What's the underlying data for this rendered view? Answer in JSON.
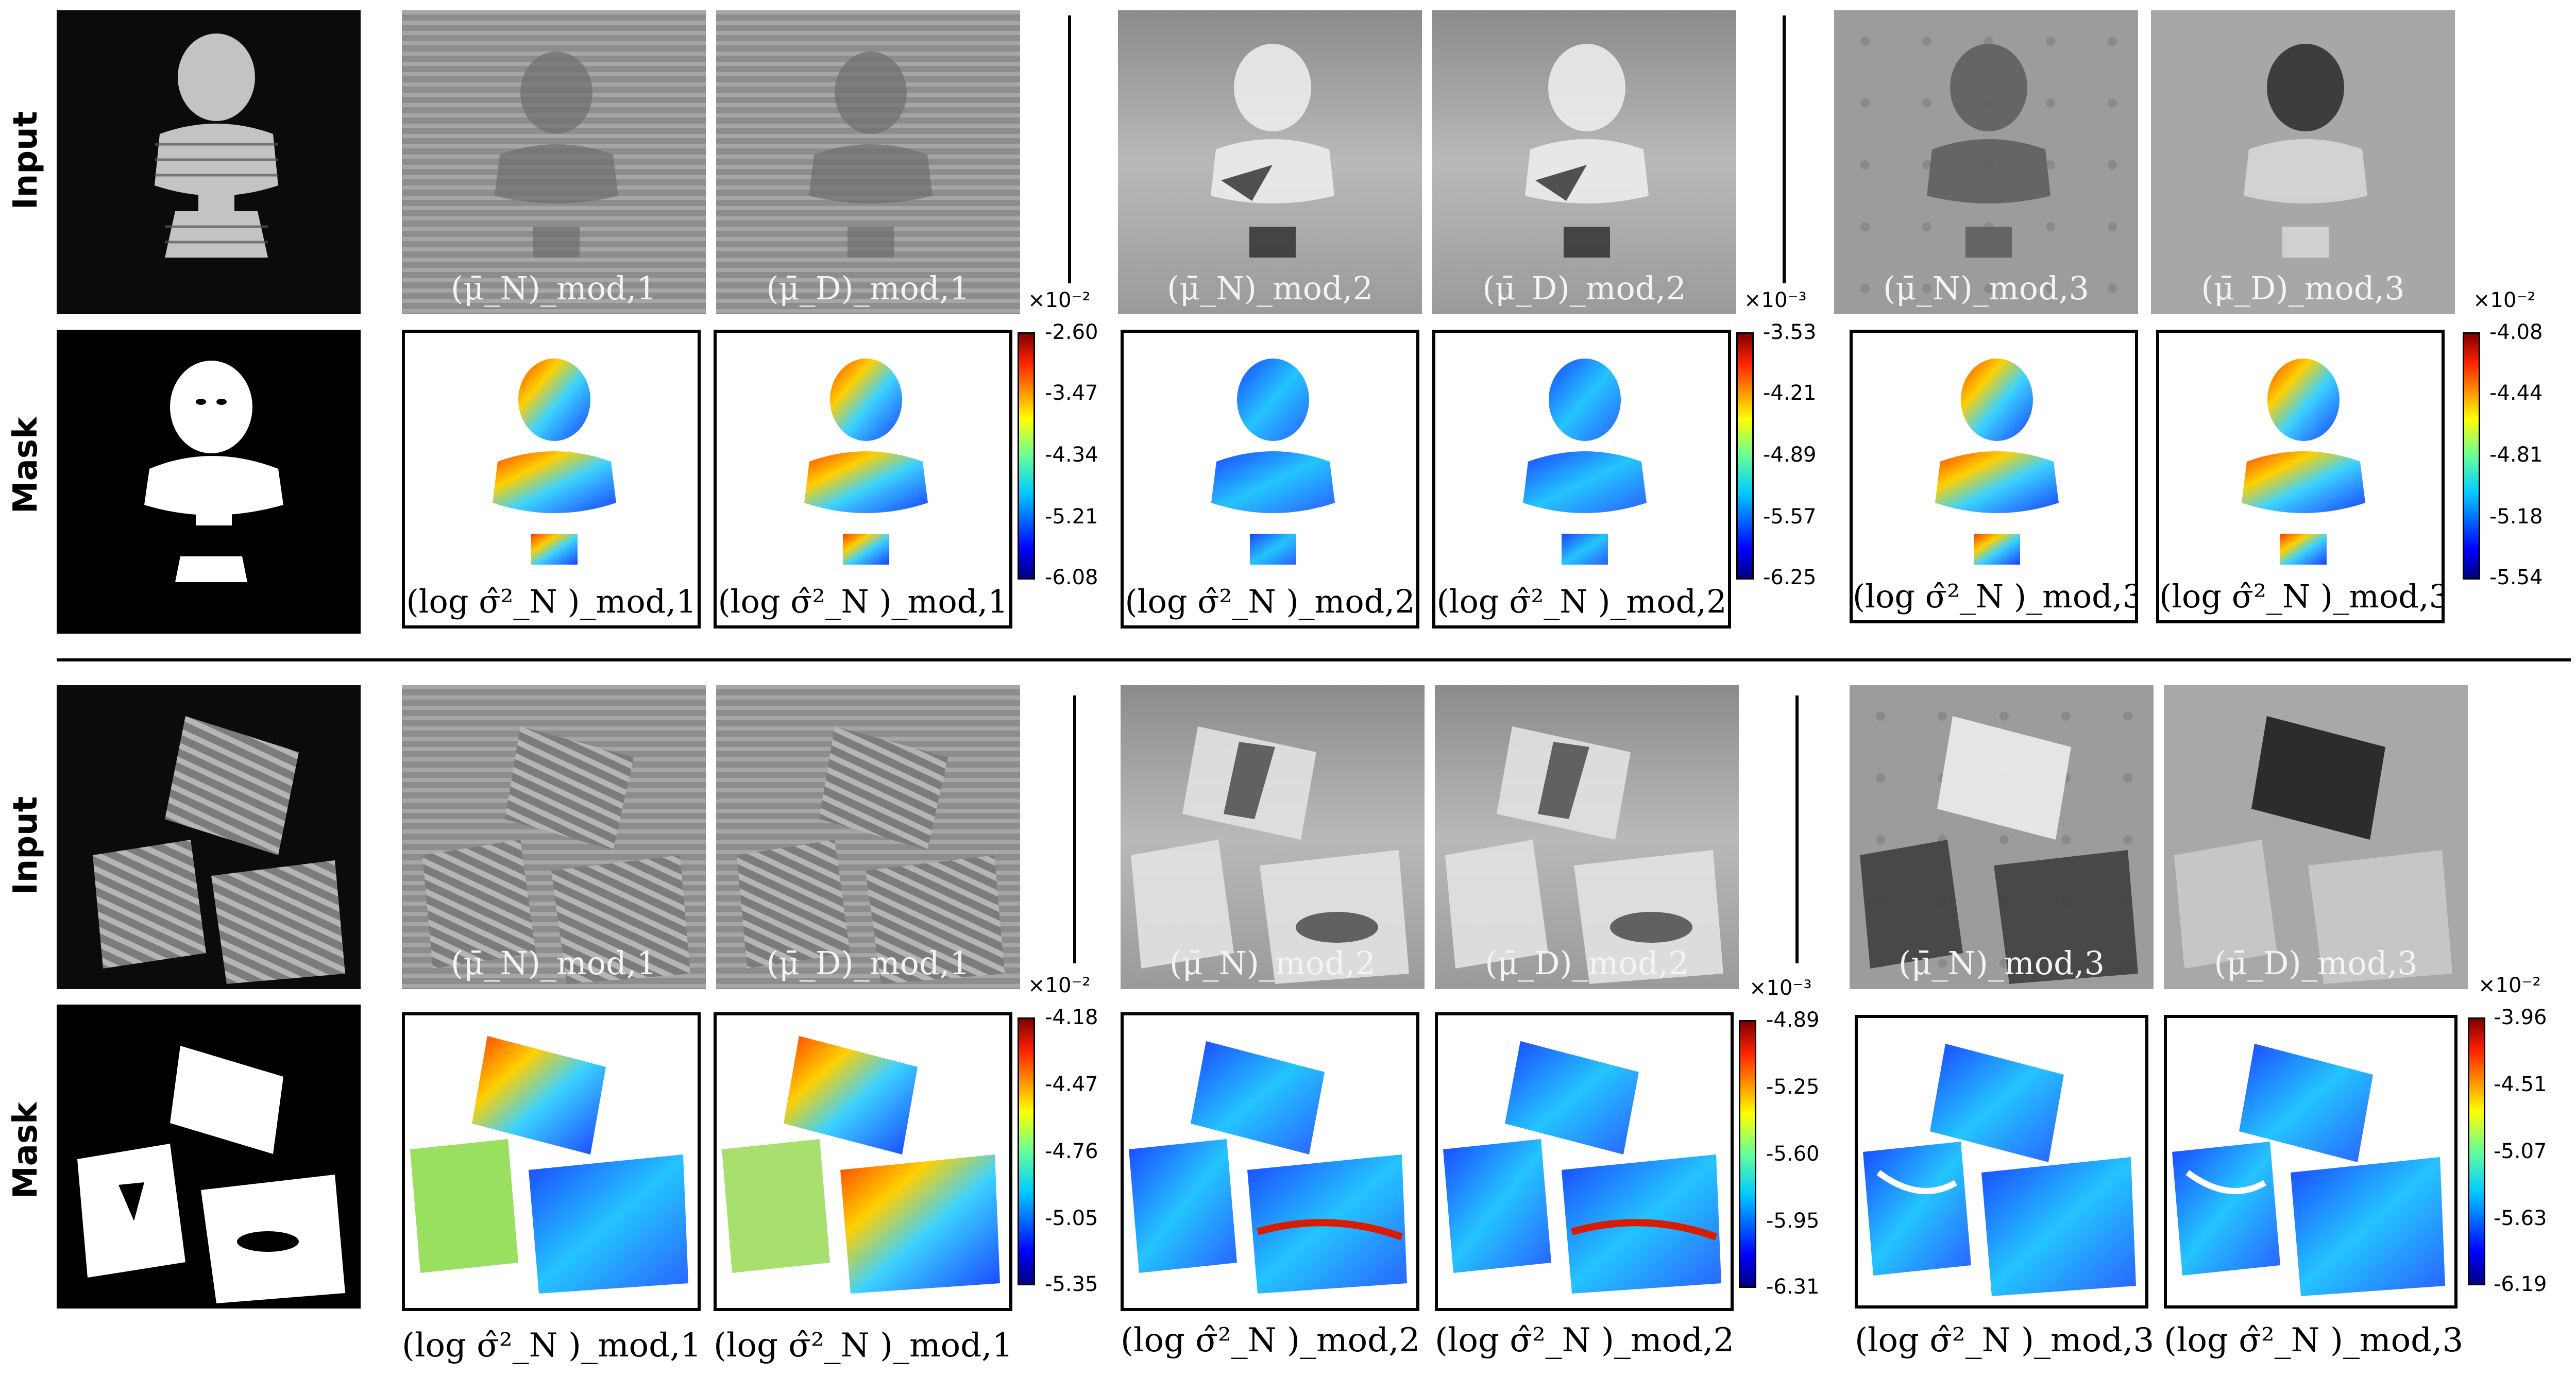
{
  "row_labels": {
    "input": "Input",
    "mask": "Mask"
  },
  "captions": {
    "muN1": "(μ̄_N)_mod,1",
    "muD1": "(μ̄_D)_mod,1",
    "muN2": "(μ̄_N)_mod,2",
    "muD2": "(μ̄_D)_mod,2",
    "muN3": "(μ̄_N)_mod,3",
    "muD3": "(μ̄_D)_mod,3",
    "sig1": "(log σ̂²_N )_mod,1",
    "sig2": "(log σ̂²_N )_mod,2",
    "sig3": "(log σ̂²_N )_mod,3"
  },
  "caption_parts": {
    "mu": "μ̄",
    "sub_N": "N",
    "sub_D": "D",
    "mod": "mod,",
    "log": "log ",
    "sigma": "σ̂",
    "sq": "2"
  },
  "colorbars": {
    "top": [
      {
        "scale": "×10⁻²",
        "ticks": [
          "-2.60",
          "-3.47",
          "-4.34",
          "-5.21",
          "-6.08"
        ]
      },
      {
        "scale": "×10⁻³",
        "ticks": [
          "-3.53",
          "-4.21",
          "-4.89",
          "-5.57",
          "-6.25"
        ]
      },
      {
        "scale": "×10⁻²",
        "ticks": [
          "-4.08",
          "-4.44",
          "-4.81",
          "-5.18",
          "-5.54"
        ]
      }
    ],
    "bottom": [
      {
        "scale": "×10⁻²",
        "ticks": [
          "-4.18",
          "-4.47",
          "-4.76",
          "-5.05",
          "-5.35"
        ]
      },
      {
        "scale": "×10⁻³",
        "ticks": [
          "-4.89",
          "-5.25",
          "-5.60",
          "-5.95",
          "-6.31"
        ]
      },
      {
        "scale": "×10⁻²",
        "ticks": [
          "-3.96",
          "-4.51",
          "-5.07",
          "-5.63",
          "-6.19"
        ]
      }
    ]
  },
  "colormap": "jet",
  "colors": {
    "background": "#ffffff",
    "frame": "#000000"
  }
}
